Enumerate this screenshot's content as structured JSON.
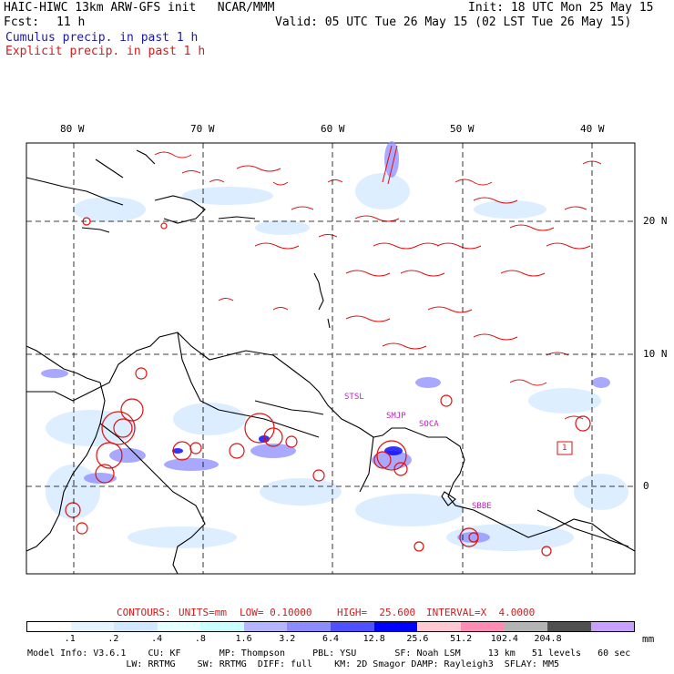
{
  "header": {
    "title_left": "HAIC-HIWC 13km ARW-GFS init   NCAR/MMM",
    "init": "Init: 18 UTC Mon 25 May 15",
    "fcst_label": "Fcst:",
    "fcst_value": "11 h",
    "valid": "Valid: 05 UTC Tue 26 May 15 (02 LST Tue 26 May 15)",
    "legend_cumulus": "Cumulus precip. in past 1 h",
    "legend_explicit": "Explicit precip. in past 1 h"
  },
  "map": {
    "lon_labels": [
      "80 W",
      "70 W",
      "60 W",
      "50 W",
      "40 W"
    ],
    "lat_labels": [
      "20 N",
      "10 N",
      "0"
    ],
    "stations": [
      "STSL",
      "SMJP",
      "SOCA",
      "SBBE"
    ],
    "max_marker": "1"
  },
  "contours_line": {
    "label": "CONTOURS:",
    "units": "UNITS=mm",
    "low": "LOW= 0.10000",
    "high": "HIGH=  25.600",
    "interval": "INTERVAL=X  4.0000"
  },
  "colorbar": {
    "ticks": [
      ".1",
      ".2",
      ".4",
      ".8",
      "1.6",
      "3.2",
      "6.4",
      "12.8",
      "25.6",
      "51.2",
      "102.4",
      "204.8"
    ],
    "units": "mm",
    "colors": [
      "#ffffff",
      "#e6f4ff",
      "#d2e8ff",
      "#e6ffff",
      "#c8ffff",
      "#b4b4ff",
      "#8c8cff",
      "#5050ff",
      "#0000ff",
      "#ffc8d2",
      "#ff8cb4",
      "#b4b4b4",
      "#505050",
      "#c8a0ff"
    ]
  },
  "footer": {
    "line1": "Model Info: V3.6.1    CU: KF       MP: Thompson     PBL: YSU       SF: Noah LSM     13 km   51 levels   60 sec",
    "line2": "                  LW: RRTMG    SW: RRTMG  DIFF: full    KM: 2D Smagor DAMP: Rayleigh3  SFLAY: MM5"
  }
}
